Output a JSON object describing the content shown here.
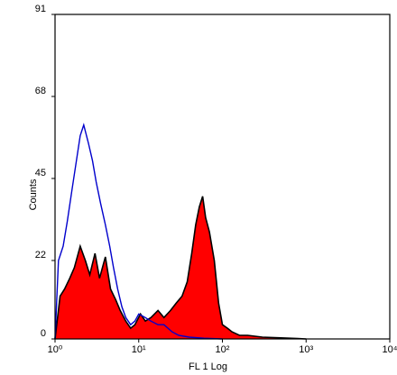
{
  "chart_data": {
    "type": "area",
    "title": "",
    "xlabel": "FL 1 Log",
    "ylabel": "Counts",
    "x_scale": "log",
    "xlim": [
      1,
      10000
    ],
    "ylim": [
      0,
      91
    ],
    "x_ticks": [
      1,
      10,
      100,
      1000,
      10000
    ],
    "x_tick_labels": [
      "10⁰",
      "10¹",
      "10²",
      "10³",
      "10⁴"
    ],
    "y_ticks": [
      0,
      22,
      45,
      68,
      91
    ],
    "y_tick_labels": [
      "0",
      "22",
      "45",
      "68",
      "91"
    ],
    "grid": false,
    "legend": "none",
    "series": [
      {
        "style": "filled",
        "fill_color": "#ff0000",
        "edge_color": "#000000",
        "x": [
          1.0,
          1.15,
          1.3,
          1.5,
          1.7,
          2.0,
          2.3,
          2.6,
          3.0,
          3.4,
          4.0,
          4.6,
          5.3,
          6.0,
          7.0,
          8.0,
          9.0,
          10.5,
          12,
          14,
          17,
          20,
          24,
          28,
          33,
          38,
          43,
          48,
          53,
          58,
          63,
          70,
          80,
          90,
          100,
          115,
          130,
          160,
          200,
          300,
          500,
          800,
          1000
        ],
        "y": [
          0,
          12,
          14,
          17,
          20,
          26,
          22,
          18,
          24,
          17,
          23,
          14,
          11,
          8,
          5,
          3,
          4,
          7,
          5,
          6,
          8,
          6,
          8,
          10,
          12,
          16,
          24,
          32,
          37,
          40,
          34,
          30,
          22,
          10,
          4,
          3,
          2,
          1,
          1,
          0.5,
          0.3,
          0.1,
          0
        ]
      },
      {
        "style": "outline",
        "line_color": "#0000cc",
        "x": [
          1.0,
          1.1,
          1.25,
          1.4,
          1.6,
          1.8,
          2.0,
          2.2,
          2.5,
          2.8,
          3.1,
          3.5,
          4.0,
          4.5,
          5.0,
          5.6,
          6.3,
          7.0,
          8.0,
          9.0,
          10,
          12,
          14,
          17,
          20,
          25,
          30,
          40,
          60,
          100
        ],
        "y": [
          0,
          22,
          26,
          33,
          42,
          50,
          57,
          60,
          55,
          50,
          44,
          38,
          32,
          26,
          20,
          14,
          9,
          6,
          4,
          5,
          7,
          6,
          5,
          4,
          4,
          2,
          1,
          0.5,
          0.2,
          0
        ]
      }
    ]
  }
}
